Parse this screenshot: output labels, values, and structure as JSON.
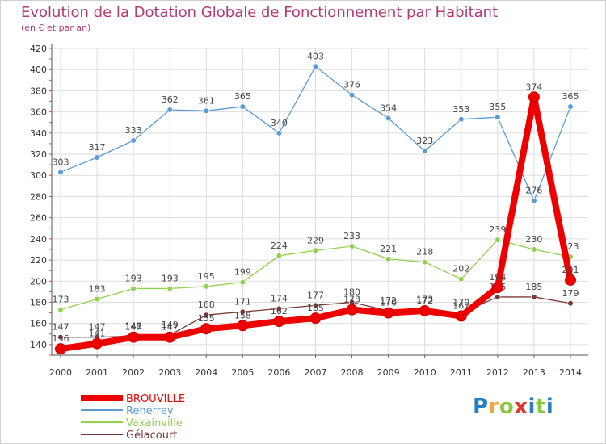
{
  "title": "Evolution de la Dotation Globale de Fonctionnement par Habitant",
  "subtitle": "(en € et par an)",
  "logo_text": "Proxiti",
  "colors": {
    "title": "#b53a6e",
    "grid": "#dddddd",
    "logo": [
      "#2a7fc1",
      "#f2a640",
      "#8cc63f",
      "#e8332a",
      "#2a7fc1",
      "#8cc63f",
      "#2a7fc1"
    ]
  },
  "chart_data": {
    "type": "line",
    "x": [
      "2000",
      "2001",
      "2002",
      "2003",
      "2004",
      "2005",
      "2006",
      "2007",
      "2008",
      "2009",
      "2010",
      "2011",
      "2012",
      "2013",
      "2014"
    ],
    "ylim": [
      130,
      420
    ],
    "yticks": [
      140,
      160,
      180,
      200,
      220,
      240,
      260,
      280,
      300,
      320,
      340,
      360,
      380,
      400,
      420
    ],
    "grid": true,
    "legend_position": "bottom-left",
    "series": [
      {
        "name": "BROUVILLE",
        "color": "#ee0000",
        "values": [
          136,
          141,
          147,
          147,
          155,
          158,
          162,
          165,
          173,
          170,
          172,
          167,
          194,
          374,
          201
        ],
        "emphasis": true
      },
      {
        "name": "Reherrey",
        "color": "#5b9bd5",
        "values": [
          303,
          317,
          333,
          362,
          361,
          365,
          340,
          403,
          376,
          354,
          323,
          353,
          355,
          276,
          365
        ]
      },
      {
        "name": "Vaxainville",
        "color": "#92d050",
        "values": [
          173,
          183,
          193,
          193,
          195,
          199,
          224,
          229,
          233,
          221,
          218,
          202,
          239,
          230,
          223
        ]
      },
      {
        "name": "Gélacourt",
        "color": "#7a3a3a",
        "values": [
          147,
          147,
          148,
          149,
          168,
          171,
          174,
          177,
          180,
          172,
          173,
          170,
          185,
          185,
          179
        ]
      }
    ]
  }
}
